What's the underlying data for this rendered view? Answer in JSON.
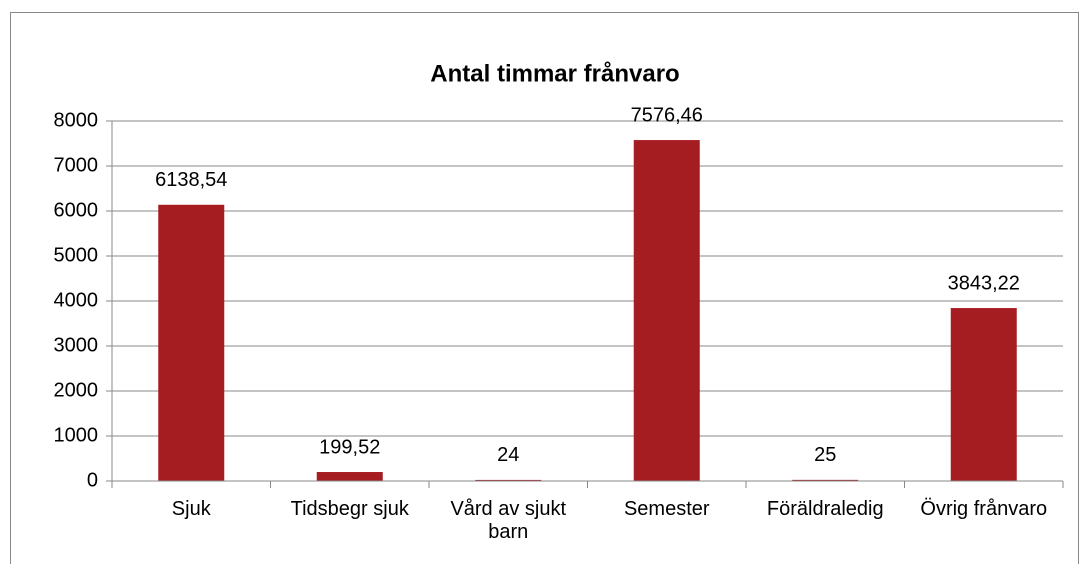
{
  "chart_data": {
    "type": "bar",
    "title": "Antal timmar frånvaro",
    "categories": [
      "Sjuk",
      "Tidsbegr sjuk",
      "Vård av sjukt barn",
      "Semester",
      "Föräldraledig",
      "Övrig frånvaro"
    ],
    "values": [
      6138.54,
      199.52,
      24,
      7576.46,
      25,
      3843.22
    ],
    "value_labels": [
      "6138,54",
      "199,52",
      "24",
      "7576,46",
      "25",
      "3843,22"
    ],
    "color": "#a51d21",
    "ylim": [
      0,
      8000
    ],
    "yticks": [
      0,
      1000,
      2000,
      3000,
      4000,
      5000,
      6000,
      7000,
      8000
    ],
    "grid": true
  }
}
